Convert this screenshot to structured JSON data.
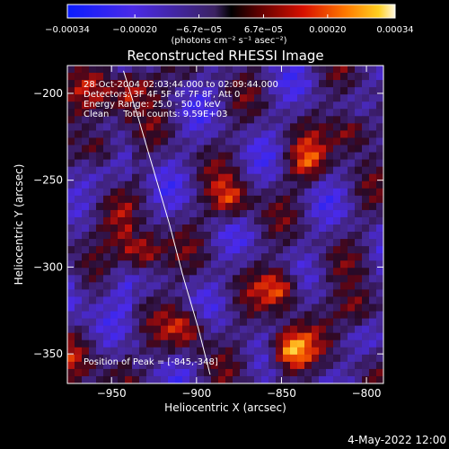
{
  "chart_data": {
    "type": "heatmap",
    "title": "Reconstructed RHESSI Image",
    "xlabel": "Heliocentric X (arcsec)",
    "ylabel": "Heliocentric Y (arcsec)",
    "x_ticks": [
      -950,
      -900,
      -850,
      -800
    ],
    "x_tick_labels": [
      "−950",
      "−900",
      "−850",
      "−800"
    ],
    "y_ticks": [
      -200,
      -250,
      -300,
      -350
    ],
    "y_tick_labels": [
      "−200",
      "−250",
      "−300",
      "−350"
    ],
    "xlim": [
      -976,
      -790
    ],
    "ylim": [
      -367,
      -184
    ],
    "grid": false,
    "colorbar": {
      "range": [
        -0.00034,
        0.00034
      ],
      "tick_values": [
        -0.00034,
        -0.0002,
        -6.7e-05,
        6.7e-05,
        0.0002,
        0.00034
      ],
      "tick_labels": [
        "−0.00034",
        "−0.00020",
        "−6.7e−05",
        "6.7e−05",
        "0.00020",
        "0.00034"
      ],
      "units_label": "(photons cm⁻² s⁻¹ asec⁻²)"
    },
    "annotations": [
      "28-Oct-2004 02:03:44.000 to 02:09:44.000",
      "Detectors: 3F 4F 5F 6F 7F 8F, Att 0",
      "Energy Range: 25.0 - 50.0 keV",
      "Clean     Total counts: 9.59E+03"
    ],
    "peak_label": "Position of Peak = [-845,-348]",
    "peak": {
      "x": -845,
      "y": -348
    },
    "bright_regions": [
      {
        "x": -845,
        "y": -348,
        "level": 1.0
      },
      {
        "x": -932,
        "y": -292,
        "level": 0.8
      },
      {
        "x": -850,
        "y": -312,
        "level": 0.7
      },
      {
        "x": -957,
        "y": -232,
        "level": 0.75
      },
      {
        "x": -935,
        "y": -195,
        "level": 0.6
      },
      {
        "x": -880,
        "y": -262,
        "level": 0.6
      },
      {
        "x": -808,
        "y": -222,
        "level": 0.7
      },
      {
        "x": -805,
        "y": -325,
        "level": 0.6
      },
      {
        "x": -905,
        "y": -335,
        "level": 0.55
      },
      {
        "x": -835,
        "y": -240,
        "level": 0.5
      }
    ],
    "limb_curve": [
      {
        "x": -943,
        "y": -187
      },
      {
        "x": -934,
        "y": -215
      },
      {
        "x": -925,
        "y": -245
      },
      {
        "x": -916,
        "y": -275
      },
      {
        "x": -908,
        "y": -305
      },
      {
        "x": -899,
        "y": -335
      },
      {
        "x": -892,
        "y": -362
      }
    ],
    "colors": {
      "background": "#000000",
      "text": "#ffffff"
    },
    "footer": "4-May-2022 12:00"
  }
}
